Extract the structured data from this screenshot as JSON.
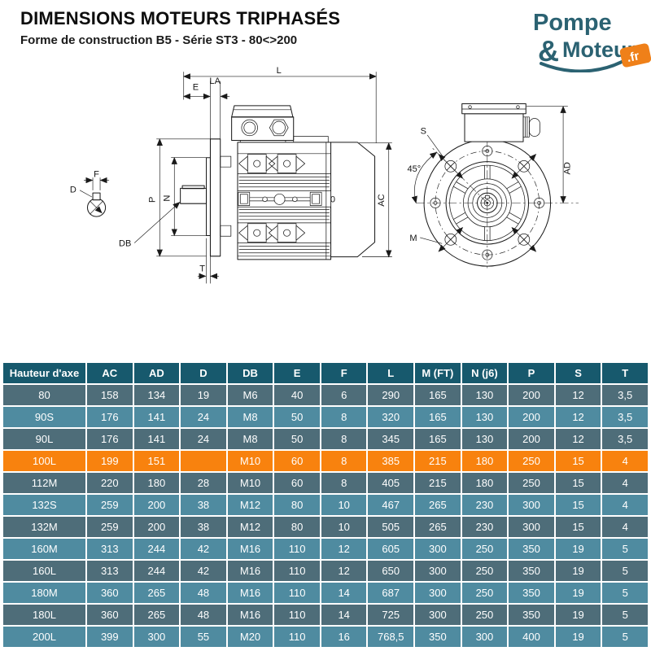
{
  "header": {
    "title": "DIMENSIONS MOTEURS TRIPHASÉS",
    "subtitle": "Forme de construction B5 - Série ST3 - 80<>200"
  },
  "logo": {
    "word1": "Pompe",
    "amp": "&",
    "word2": "Moteur",
    "tld": ".fr",
    "brand_color": "#2b6272",
    "accent_color": "#ef8019"
  },
  "drawing": {
    "side": {
      "L": "L",
      "E": "E",
      "LA": "LA",
      "P": "P",
      "N": "N",
      "DB": "DB",
      "T": "T",
      "AC": "AC",
      "zero": "0"
    },
    "shaft": {
      "F": "F",
      "D": "D"
    },
    "front": {
      "S": "S",
      "angle": "45°",
      "M": "M",
      "AD": "AD"
    }
  },
  "table": {
    "headers": [
      "Hauteur d'axe",
      "AC",
      "AD",
      "D",
      "DB",
      "E",
      "F",
      "L",
      "M (FT)",
      "N (j6)",
      "P",
      "S",
      "T"
    ],
    "rows": [
      {
        "cells": [
          "80",
          "158",
          "134",
          "19",
          "M6",
          "40",
          "6",
          "290",
          "165",
          "130",
          "200",
          "12",
          "3,5"
        ],
        "highlight": false
      },
      {
        "cells": [
          "90S",
          "176",
          "141",
          "24",
          "M8",
          "50",
          "8",
          "320",
          "165",
          "130",
          "200",
          "12",
          "3,5"
        ],
        "highlight": false
      },
      {
        "cells": [
          "90L",
          "176",
          "141",
          "24",
          "M8",
          "50",
          "8",
          "345",
          "165",
          "130",
          "200",
          "12",
          "3,5"
        ],
        "highlight": false
      },
      {
        "cells": [
          "100L",
          "199",
          "151",
          "",
          "M10",
          "60",
          "8",
          "385",
          "215",
          "180",
          "250",
          "15",
          "4"
        ],
        "highlight": true
      },
      {
        "cells": [
          "112M",
          "220",
          "180",
          "28",
          "M10",
          "60",
          "8",
          "405",
          "215",
          "180",
          "250",
          "15",
          "4"
        ],
        "highlight": false
      },
      {
        "cells": [
          "132S",
          "259",
          "200",
          "38",
          "M12",
          "80",
          "10",
          "467",
          "265",
          "230",
          "300",
          "15",
          "4"
        ],
        "highlight": false
      },
      {
        "cells": [
          "132M",
          "259",
          "200",
          "38",
          "M12",
          "80",
          "10",
          "505",
          "265",
          "230",
          "300",
          "15",
          "4"
        ],
        "highlight": false
      },
      {
        "cells": [
          "160M",
          "313",
          "244",
          "42",
          "M16",
          "110",
          "12",
          "605",
          "300",
          "250",
          "350",
          "19",
          "5"
        ],
        "highlight": false
      },
      {
        "cells": [
          "160L",
          "313",
          "244",
          "42",
          "M16",
          "110",
          "12",
          "650",
          "300",
          "250",
          "350",
          "19",
          "5"
        ],
        "highlight": false
      },
      {
        "cells": [
          "180M",
          "360",
          "265",
          "48",
          "M16",
          "110",
          "14",
          "687",
          "300",
          "250",
          "350",
          "19",
          "5"
        ],
        "highlight": false
      },
      {
        "cells": [
          "180L",
          "360",
          "265",
          "48",
          "M16",
          "110",
          "14",
          "725",
          "300",
          "250",
          "350",
          "19",
          "5"
        ],
        "highlight": false
      },
      {
        "cells": [
          "200L",
          "399",
          "300",
          "55",
          "M20",
          "110",
          "16",
          "768,5",
          "350",
          "300",
          "400",
          "19",
          "5"
        ],
        "highlight": false
      }
    ],
    "colors": {
      "header_bg": "#17596d",
      "row_dark": "#4e6d79",
      "row_light": "#4f8ba0",
      "highlight": "#f8820e",
      "text": "#ffffff"
    }
  }
}
